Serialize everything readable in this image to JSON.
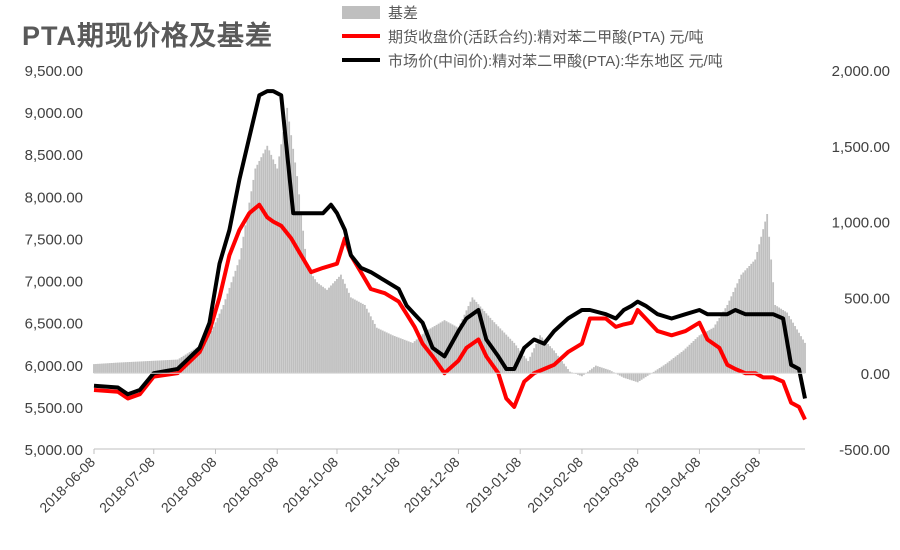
{
  "title": "PTA期现价格及基差",
  "chart_data": {
    "type": "line",
    "title": "PTA期现价格及基差",
    "grid": false,
    "legend_position": "top-right",
    "left_axis": {
      "ylim": [
        5000,
        9500
      ],
      "ticks": [
        "5,000.00",
        "5,500.00",
        "6,000.00",
        "6,500.00",
        "7,000.00",
        "7,500.00",
        "8,000.00",
        "8,500.00",
        "9,000.00",
        "9,500.00"
      ]
    },
    "right_axis": {
      "ylim": [
        -500,
        2000
      ],
      "ticks": [
        "-500.00",
        "0.00",
        "500.00",
        "1,000.00",
        "1,500.00",
        "2,000.00"
      ]
    },
    "x_ticks": [
      "2018-06-08",
      "2018-07-08",
      "2018-08-08",
      "2018-09-08",
      "2018-10-08",
      "2018-11-08",
      "2018-12-08",
      "2019-01-08",
      "2019-02-08",
      "2019-03-08",
      "2019-04-08",
      "2019-05-08"
    ],
    "x_range": [
      "2018-06-08",
      "2019-05-31"
    ],
    "series": [
      {
        "name": "基差",
        "kind": "bar",
        "axis": "right",
        "color": "#bfbfbf",
        "points": [
          [
            "2018-06-08",
            60
          ],
          [
            "2018-06-20",
            70
          ],
          [
            "2018-07-05",
            80
          ],
          [
            "2018-07-20",
            90
          ],
          [
            "2018-07-31",
            180
          ],
          [
            "2018-08-05",
            250
          ],
          [
            "2018-08-12",
            450
          ],
          [
            "2018-08-20",
            750
          ],
          [
            "2018-08-28",
            1350
          ],
          [
            "2018-09-03",
            1500
          ],
          [
            "2018-09-08",
            1350
          ],
          [
            "2018-09-13",
            1750
          ],
          [
            "2018-09-18",
            1300
          ],
          [
            "2018-09-23",
            700
          ],
          [
            "2018-09-28",
            600
          ],
          [
            "2018-10-03",
            550
          ],
          [
            "2018-10-10",
            650
          ],
          [
            "2018-10-15",
            500
          ],
          [
            "2018-10-22",
            450
          ],
          [
            "2018-10-28",
            300
          ],
          [
            "2018-11-05",
            250
          ],
          [
            "2018-11-15",
            200
          ],
          [
            "2018-11-22",
            280
          ],
          [
            "2018-12-01",
            350
          ],
          [
            "2018-12-08",
            300
          ],
          [
            "2018-12-15",
            500
          ],
          [
            "2018-12-25",
            350
          ],
          [
            "2019-01-05",
            200
          ],
          [
            "2019-01-12",
            80
          ],
          [
            "2019-01-18",
            250
          ],
          [
            "2019-01-25",
            150
          ],
          [
            "2019-02-02",
            10
          ],
          [
            "2019-02-08",
            -20
          ],
          [
            "2019-02-15",
            50
          ],
          [
            "2019-02-22",
            20
          ],
          [
            "2019-03-01",
            -30
          ],
          [
            "2019-03-08",
            -60
          ],
          [
            "2019-03-15",
            0
          ],
          [
            "2019-03-22",
            60
          ],
          [
            "2019-03-31",
            150
          ],
          [
            "2019-04-08",
            250
          ],
          [
            "2019-04-15",
            300
          ],
          [
            "2019-04-22",
            450
          ],
          [
            "2019-04-29",
            650
          ],
          [
            "2019-05-06",
            750
          ],
          [
            "2019-05-12",
            1050
          ],
          [
            "2019-05-16",
            450
          ],
          [
            "2019-05-22",
            400
          ],
          [
            "2019-05-31",
            200
          ]
        ]
      },
      {
        "name": "期货收盘价(活跃合约):精对苯二甲酸(PTA) 元/吨",
        "kind": "line",
        "axis": "left",
        "color": "#ff0000",
        "points": [
          [
            "2018-06-08",
            5700
          ],
          [
            "2018-06-20",
            5680
          ],
          [
            "2018-06-25",
            5600
          ],
          [
            "2018-07-01",
            5650
          ],
          [
            "2018-07-08",
            5860
          ],
          [
            "2018-07-20",
            5900
          ],
          [
            "2018-07-31",
            6150
          ],
          [
            "2018-08-05",
            6400
          ],
          [
            "2018-08-10",
            6800
          ],
          [
            "2018-08-15",
            7300
          ],
          [
            "2018-08-20",
            7600
          ],
          [
            "2018-08-25",
            7800
          ],
          [
            "2018-08-30",
            7900
          ],
          [
            "2018-09-03",
            7750
          ],
          [
            "2018-09-06",
            7700
          ],
          [
            "2018-09-10",
            7650
          ],
          [
            "2018-09-15",
            7500
          ],
          [
            "2018-09-20",
            7300
          ],
          [
            "2018-09-25",
            7100
          ],
          [
            "2018-10-01",
            7150
          ],
          [
            "2018-10-08",
            7200
          ],
          [
            "2018-10-12",
            7500
          ],
          [
            "2018-10-15",
            7300
          ],
          [
            "2018-10-20",
            7100
          ],
          [
            "2018-10-25",
            6900
          ],
          [
            "2018-11-01",
            6850
          ],
          [
            "2018-11-08",
            6750
          ],
          [
            "2018-11-12",
            6600
          ],
          [
            "2018-11-16",
            6450
          ],
          [
            "2018-11-20",
            6250
          ],
          [
            "2018-11-25",
            6100
          ],
          [
            "2018-12-01",
            5900
          ],
          [
            "2018-12-08",
            6050
          ],
          [
            "2018-12-12",
            6200
          ],
          [
            "2018-12-18",
            6300
          ],
          [
            "2018-12-22",
            6100
          ],
          [
            "2018-12-28",
            5900
          ],
          [
            "2019-01-01",
            5600
          ],
          [
            "2019-01-05",
            5500
          ],
          [
            "2019-01-10",
            5800
          ],
          [
            "2019-01-15",
            5900
          ],
          [
            "2019-01-20",
            5950
          ],
          [
            "2019-01-25",
            6000
          ],
          [
            "2019-02-01",
            6150
          ],
          [
            "2019-02-08",
            6250
          ],
          [
            "2019-02-12",
            6550
          ],
          [
            "2019-02-20",
            6550
          ],
          [
            "2019-02-25",
            6450
          ],
          [
            "2019-03-01",
            6480
          ],
          [
            "2019-03-05",
            6500
          ],
          [
            "2019-03-08",
            6650
          ],
          [
            "2019-03-12",
            6550
          ],
          [
            "2019-03-18",
            6400
          ],
          [
            "2019-03-25",
            6350
          ],
          [
            "2019-04-01",
            6400
          ],
          [
            "2019-04-08",
            6500
          ],
          [
            "2019-04-12",
            6300
          ],
          [
            "2019-04-18",
            6200
          ],
          [
            "2019-04-22",
            6000
          ],
          [
            "2019-04-26",
            5950
          ],
          [
            "2019-05-01",
            5900
          ],
          [
            "2019-05-06",
            5900
          ],
          [
            "2019-05-10",
            5850
          ],
          [
            "2019-05-15",
            5850
          ],
          [
            "2019-05-20",
            5800
          ],
          [
            "2019-05-24",
            5550
          ],
          [
            "2019-05-28",
            5500
          ],
          [
            "2019-05-31",
            5350
          ]
        ]
      },
      {
        "name": "市场价(中间价):精对苯二甲酸(PTA):华东地区 元/吨",
        "kind": "line",
        "axis": "left",
        "color": "#000000",
        "points": [
          [
            "2018-06-08",
            5750
          ],
          [
            "2018-06-20",
            5730
          ],
          [
            "2018-06-25",
            5650
          ],
          [
            "2018-07-01",
            5700
          ],
          [
            "2018-07-08",
            5900
          ],
          [
            "2018-07-20",
            5950
          ],
          [
            "2018-07-31",
            6200
          ],
          [
            "2018-08-05",
            6500
          ],
          [
            "2018-08-10",
            7200
          ],
          [
            "2018-08-15",
            7600
          ],
          [
            "2018-08-20",
            8200
          ],
          [
            "2018-08-25",
            8700
          ],
          [
            "2018-08-30",
            9200
          ],
          [
            "2018-09-03",
            9250
          ],
          [
            "2018-09-06",
            9250
          ],
          [
            "2018-09-10",
            9200
          ],
          [
            "2018-09-13",
            8500
          ],
          [
            "2018-09-16",
            7800
          ],
          [
            "2018-09-20",
            7800
          ],
          [
            "2018-09-25",
            7800
          ],
          [
            "2018-10-01",
            7800
          ],
          [
            "2018-10-05",
            7900
          ],
          [
            "2018-10-08",
            7800
          ],
          [
            "2018-10-12",
            7600
          ],
          [
            "2018-10-15",
            7300
          ],
          [
            "2018-10-20",
            7150
          ],
          [
            "2018-10-25",
            7100
          ],
          [
            "2018-11-01",
            7000
          ],
          [
            "2018-11-08",
            6900
          ],
          [
            "2018-11-12",
            6700
          ],
          [
            "2018-11-16",
            6600
          ],
          [
            "2018-11-20",
            6500
          ],
          [
            "2018-11-25",
            6200
          ],
          [
            "2018-12-01",
            6100
          ],
          [
            "2018-12-08",
            6400
          ],
          [
            "2018-12-12",
            6550
          ],
          [
            "2018-12-18",
            6650
          ],
          [
            "2018-12-22",
            6300
          ],
          [
            "2018-12-28",
            6100
          ],
          [
            "2019-01-01",
            5950
          ],
          [
            "2019-01-05",
            5950
          ],
          [
            "2019-01-10",
            6200
          ],
          [
            "2019-01-15",
            6300
          ],
          [
            "2019-01-20",
            6250
          ],
          [
            "2019-01-25",
            6400
          ],
          [
            "2019-02-01",
            6550
          ],
          [
            "2019-02-08",
            6650
          ],
          [
            "2019-02-12",
            6650
          ],
          [
            "2019-02-20",
            6600
          ],
          [
            "2019-02-25",
            6550
          ],
          [
            "2019-03-01",
            6650
          ],
          [
            "2019-03-05",
            6700
          ],
          [
            "2019-03-08",
            6750
          ],
          [
            "2019-03-12",
            6700
          ],
          [
            "2019-03-18",
            6600
          ],
          [
            "2019-03-25",
            6550
          ],
          [
            "2019-04-01",
            6600
          ],
          [
            "2019-04-08",
            6650
          ],
          [
            "2019-04-12",
            6600
          ],
          [
            "2019-04-18",
            6600
          ],
          [
            "2019-04-22",
            6600
          ],
          [
            "2019-04-26",
            6650
          ],
          [
            "2019-05-01",
            6600
          ],
          [
            "2019-05-06",
            6600
          ],
          [
            "2019-05-10",
            6600
          ],
          [
            "2019-05-15",
            6600
          ],
          [
            "2019-05-20",
            6550
          ],
          [
            "2019-05-24",
            6000
          ],
          [
            "2019-05-28",
            5950
          ],
          [
            "2019-05-31",
            5600
          ]
        ]
      }
    ]
  }
}
